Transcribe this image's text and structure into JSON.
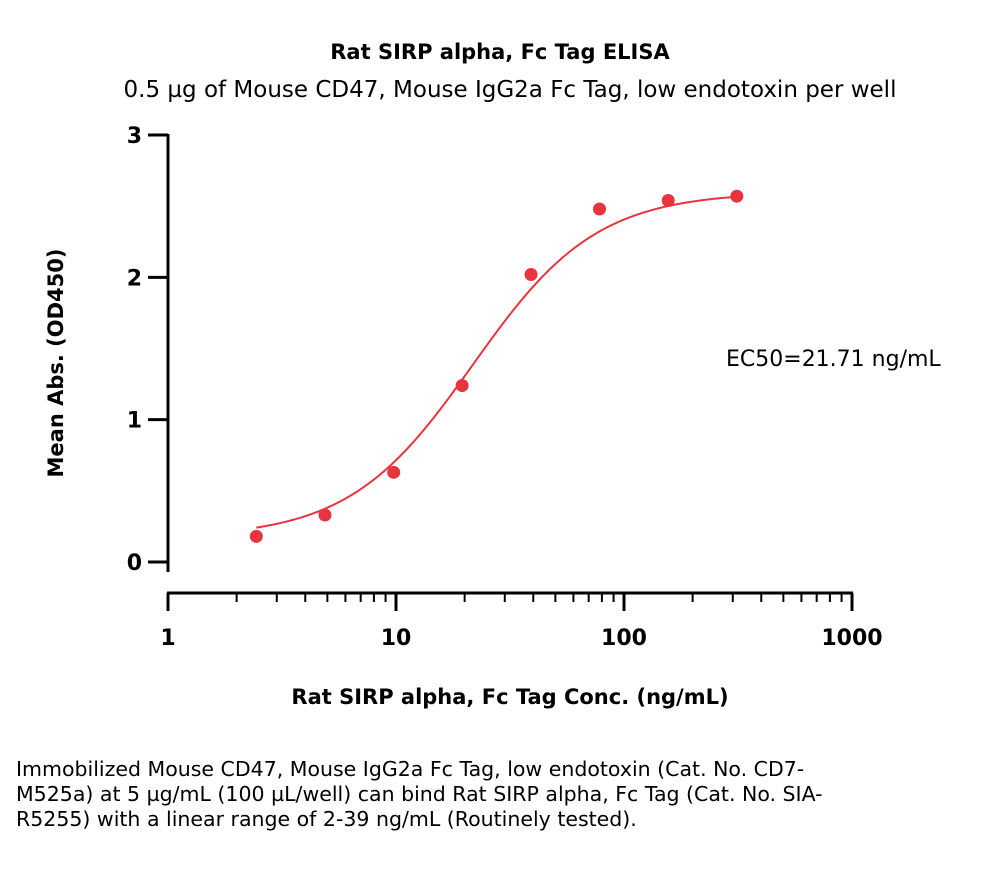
{
  "chart_data": {
    "type": "scatter",
    "title": "Rat SIRP alpha, Fc Tag ELISA",
    "subtitle": "0.5 µg of Mouse CD47, Mouse IgG2a Fc Tag, low endotoxin per well",
    "xlabel": "Rat SIRP alpha, Fc Tag Conc. (ng/mL)",
    "ylabel": "Mean Abs. (OD450)",
    "xscale": "log",
    "xlim": [
      1,
      1000
    ],
    "ylim": [
      0,
      3
    ],
    "xticks": [
      1,
      10,
      100,
      1000
    ],
    "xtick_labels": [
      "1",
      "10",
      "100",
      "1000"
    ],
    "yticks": [
      0,
      1,
      2,
      3
    ],
    "ytick_labels": [
      "0",
      "1",
      "2",
      "3"
    ],
    "grid": false,
    "series": [
      {
        "x": [
          2.44,
          4.88,
          9.77,
          19.5,
          39.1,
          78.1,
          156.3,
          312.5
        ],
        "y": [
          0.18,
          0.33,
          0.63,
          1.24,
          2.02,
          2.48,
          2.54,
          2.57
        ],
        "color": "#e8343f",
        "fit": "4PL"
      }
    ],
    "annotations": [
      {
        "text": "EC50=21.71 ng/mL"
      }
    ]
  },
  "caption": "Immobilized Mouse CD47, Mouse IgG2a Fc Tag, low endotoxin (Cat. No. CD7-M525a) at 5 µg/mL (100 µL/well) can bind Rat SIRP alpha, Fc Tag (Cat. No. SIA-R5255) with a linear range of 2-39 ng/mL (Routinely tested)."
}
